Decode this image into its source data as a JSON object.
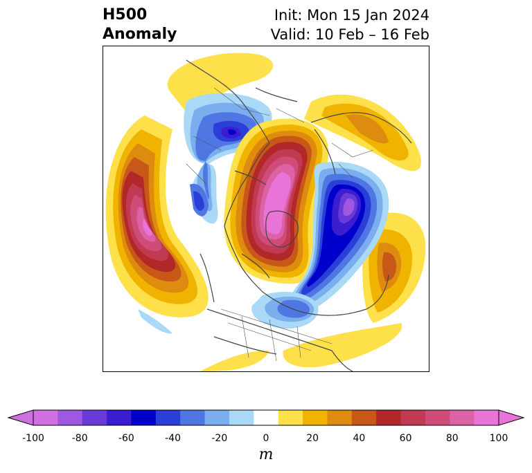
{
  "title": {
    "left_line1": "H500",
    "left_line2": "Anomaly",
    "right_line1": "Init: Mon 15 Jan 2024",
    "right_line2": "Valid: 10 Feb – 16 Feb"
  },
  "colorbar": {
    "units": "m",
    "ticks": [
      "-100",
      "-80",
      "-60",
      "-40",
      "-20",
      "0",
      "20",
      "40",
      "60",
      "80",
      "100"
    ],
    "levels": [
      -100,
      -90,
      -80,
      -70,
      -60,
      -50,
      -40,
      -30,
      -20,
      -10,
      10,
      20,
      30,
      40,
      50,
      60,
      70,
      80,
      90,
      100
    ],
    "colors": [
      "#d070e0",
      "#a058e0",
      "#6a3ad8",
      "#3a1ed0",
      "#0000cd",
      "#2a3ed8",
      "#4f76e3",
      "#7aaeee",
      "#aad8f7",
      "#ffffff",
      "#fde04a",
      "#f0b400",
      "#de8c10",
      "#c85818",
      "#b22828",
      "#c03a54",
      "#d04c78",
      "#dc62a6",
      "#e874d8"
    ],
    "extend_low_color": "#d070e0",
    "extend_high_color": "#e874d8"
  }
}
